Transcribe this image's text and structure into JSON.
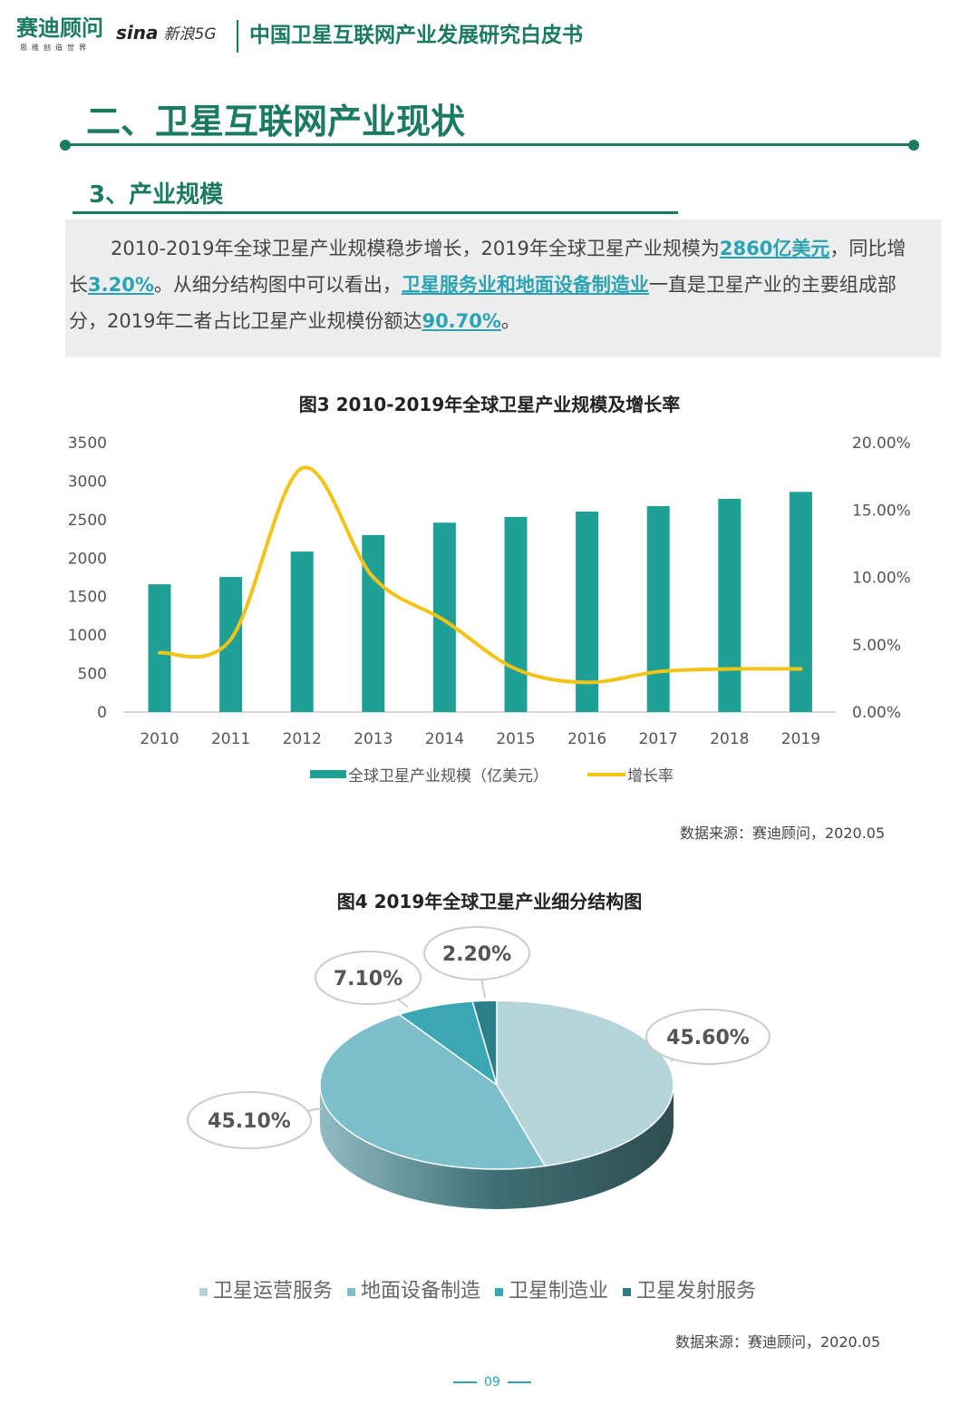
{
  "header": {
    "brand": "赛迪顾问",
    "brand_slogan": "思维创造世界",
    "partner": "sina",
    "partner_suffix": "新浪5G",
    "title": "中国卫星互联网产业发展研究白皮书"
  },
  "section": {
    "title": "二、卫星互联网产业现状",
    "subtitle": "3、产业规模"
  },
  "paragraph": [
    {
      "t": "2010-2019年全球卫星产业规模稳步增长，2019年全球卫星产业规模为"
    },
    {
      "t": "2860亿美元",
      "hl": true
    },
    {
      "t": "，同比增长"
    },
    {
      "t": "3.20%",
      "hl": true
    },
    {
      "t": "。从细分结构图中可以看出，"
    },
    {
      "t": "卫星服务业和地面设备制造业",
      "hl": true
    },
    {
      "t": "一直是卫星产业的主要组成部分，2019年二者占比卫星产业规模份额达"
    },
    {
      "t": "90.70%",
      "hl": true
    },
    {
      "t": "。"
    }
  ],
  "colors": {
    "brand": "#1b7a62",
    "bar": "#1fa096",
    "line": "#f3c318",
    "highlight": "#2aa3b3"
  },
  "chart_data": [
    {
      "type": "bar+line",
      "title": "图3  2010-2019年全球卫星产业规模及增长率",
      "categories": [
        "2010",
        "2011",
        "2012",
        "2013",
        "2014",
        "2015",
        "2016",
        "2017",
        "2018",
        "2019"
      ],
      "series": [
        {
          "name": "全球卫星产业规模（亿美元）",
          "type": "bar",
          "axis": "left",
          "values": [
            1660,
            1755,
            2085,
            2300,
            2460,
            2535,
            2605,
            2675,
            2770,
            2860
          ]
        },
        {
          "name": "增长率",
          "type": "line",
          "axis": "right",
          "values": [
            4.4,
            5.4,
            18.1,
            10.0,
            6.8,
            3.2,
            2.2,
            3.0,
            3.2,
            3.2
          ]
        }
      ],
      "ylim": [
        0,
        3500
      ],
      "yticks": [
        "0",
        "500",
        "1000",
        "1500",
        "2000",
        "2500",
        "3000",
        "3500"
      ],
      "y2lim": [
        0,
        20
      ],
      "y2ticks": [
        "0.00%",
        "5.00%",
        "10.00%",
        "15.00%",
        "20.00%"
      ],
      "legend": "bottom",
      "source": "数据来源：赛迪顾问，2020.05"
    },
    {
      "type": "pie",
      "title": "图4  2019年全球卫星产业细分结构图",
      "labels": [
        "卫星运营服务",
        "地面设备制造",
        "卫星制造业",
        "卫星发射服务"
      ],
      "values": [
        45.6,
        45.1,
        7.1,
        2.2
      ],
      "value_labels": [
        "45.60%",
        "45.10%",
        "7.10%",
        "2.20%"
      ],
      "colors": [
        "#b5d5db",
        "#7cbfcb",
        "#3ba6b4",
        "#2a7f89"
      ],
      "legend": "bottom",
      "source": "数据来源：赛迪顾问，2020.05"
    }
  ],
  "footer": {
    "page": "09"
  }
}
